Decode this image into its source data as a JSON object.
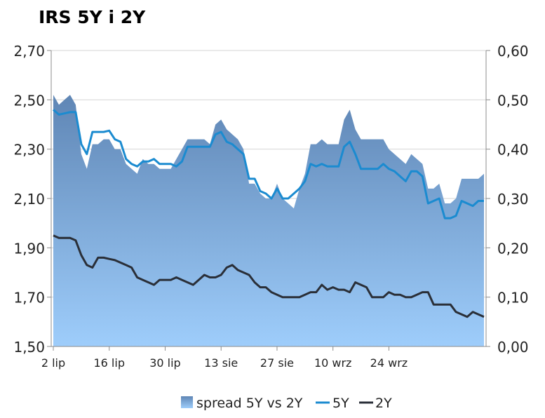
{
  "chart_data": {
    "type": "area",
    "title": "IRS 5Y i 2Y",
    "left_axis": {
      "ylim": [
        1.5,
        2.7
      ],
      "ticks": [
        "1,50",
        "1,70",
        "1,90",
        "2,10",
        "2,30",
        "2,50",
        "2,70"
      ]
    },
    "right_axis": {
      "ylim": [
        0.0,
        0.6
      ],
      "ticks": [
        "0,00",
        "0,10",
        "0,20",
        "0,30",
        "0,40",
        "0,50",
        "0,60"
      ]
    },
    "x_tick_labels": [
      "2 lip",
      "16 lip",
      "30 lip",
      "13 sie",
      "27 sie",
      "10 wrz",
      "24 wrz"
    ],
    "x_tick_positions": [
      0,
      10,
      20,
      30,
      40,
      50,
      60
    ],
    "grid": true,
    "legend_position": "bottom",
    "colors": {
      "spread_top": "#5f86b5",
      "spread_bottom": "#9ecdfb",
      "line_5y": "#1b8bd0",
      "line_2y": "#2a2f38",
      "grid": "#d4d4d4",
      "axis": "#8c8c8c"
    },
    "series": [
      {
        "name": "spread 5Y vs 2Y",
        "axis": "right",
        "values": [
          0.51,
          0.49,
          0.5,
          0.51,
          0.49,
          0.39,
          0.36,
          0.41,
          0.41,
          0.42,
          0.42,
          0.4,
          0.4,
          0.37,
          0.36,
          0.35,
          0.38,
          0.37,
          0.37,
          0.36,
          0.36,
          0.36,
          0.38,
          0.4,
          0.42,
          0.42,
          0.42,
          0.42,
          0.41,
          0.45,
          0.46,
          0.44,
          0.43,
          0.42,
          0.4,
          0.33,
          0.33,
          0.31,
          0.3,
          0.3,
          0.33,
          0.3,
          0.29,
          0.28,
          0.32,
          0.35,
          0.41,
          0.41,
          0.42,
          0.41,
          0.41,
          0.41,
          0.46,
          0.48,
          0.44,
          0.42,
          0.42,
          0.42,
          0.42,
          0.42,
          0.4,
          0.39,
          0.38,
          0.37,
          0.39,
          0.38,
          0.37,
          0.32,
          0.32,
          0.33,
          0.29,
          0.29,
          0.3,
          0.34,
          0.34,
          0.34,
          0.34,
          0.35
        ]
      },
      {
        "name": "5Y",
        "axis": "left",
        "values": [
          2.46,
          2.44,
          2.445,
          2.45,
          2.45,
          2.32,
          2.28,
          2.37,
          2.37,
          2.37,
          2.375,
          2.34,
          2.33,
          2.26,
          2.24,
          2.23,
          2.25,
          2.25,
          2.26,
          2.24,
          2.24,
          2.24,
          2.23,
          2.25,
          2.31,
          2.31,
          2.31,
          2.31,
          2.31,
          2.36,
          2.37,
          2.33,
          2.32,
          2.3,
          2.28,
          2.18,
          2.18,
          2.13,
          2.12,
          2.1,
          2.14,
          2.1,
          2.1,
          2.12,
          2.14,
          2.17,
          2.24,
          2.23,
          2.24,
          2.23,
          2.23,
          2.23,
          2.31,
          2.33,
          2.28,
          2.22,
          2.22,
          2.22,
          2.22,
          2.24,
          2.22,
          2.21,
          2.19,
          2.17,
          2.21,
          2.21,
          2.19,
          2.08,
          2.09,
          2.1,
          2.02,
          2.02,
          2.03,
          2.09,
          2.08,
          2.07,
          2.09,
          2.09
        ]
      },
      {
        "name": "2Y",
        "axis": "left",
        "values": [
          1.95,
          1.94,
          1.94,
          1.94,
          1.93,
          1.87,
          1.83,
          1.82,
          1.86,
          1.86,
          1.855,
          1.85,
          1.84,
          1.83,
          1.82,
          1.78,
          1.77,
          1.76,
          1.75,
          1.77,
          1.77,
          1.77,
          1.78,
          1.77,
          1.76,
          1.75,
          1.77,
          1.79,
          1.78,
          1.78,
          1.79,
          1.82,
          1.83,
          1.81,
          1.8,
          1.79,
          1.76,
          1.74,
          1.74,
          1.72,
          1.71,
          1.7,
          1.7,
          1.7,
          1.7,
          1.71,
          1.72,
          1.72,
          1.75,
          1.73,
          1.74,
          1.73,
          1.73,
          1.72,
          1.76,
          1.75,
          1.74,
          1.7,
          1.7,
          1.7,
          1.72,
          1.71,
          1.71,
          1.7,
          1.7,
          1.71,
          1.72,
          1.72,
          1.67,
          1.67,
          1.67,
          1.67,
          1.64,
          1.63,
          1.62,
          1.64,
          1.63,
          1.62
        ]
      }
    ]
  }
}
